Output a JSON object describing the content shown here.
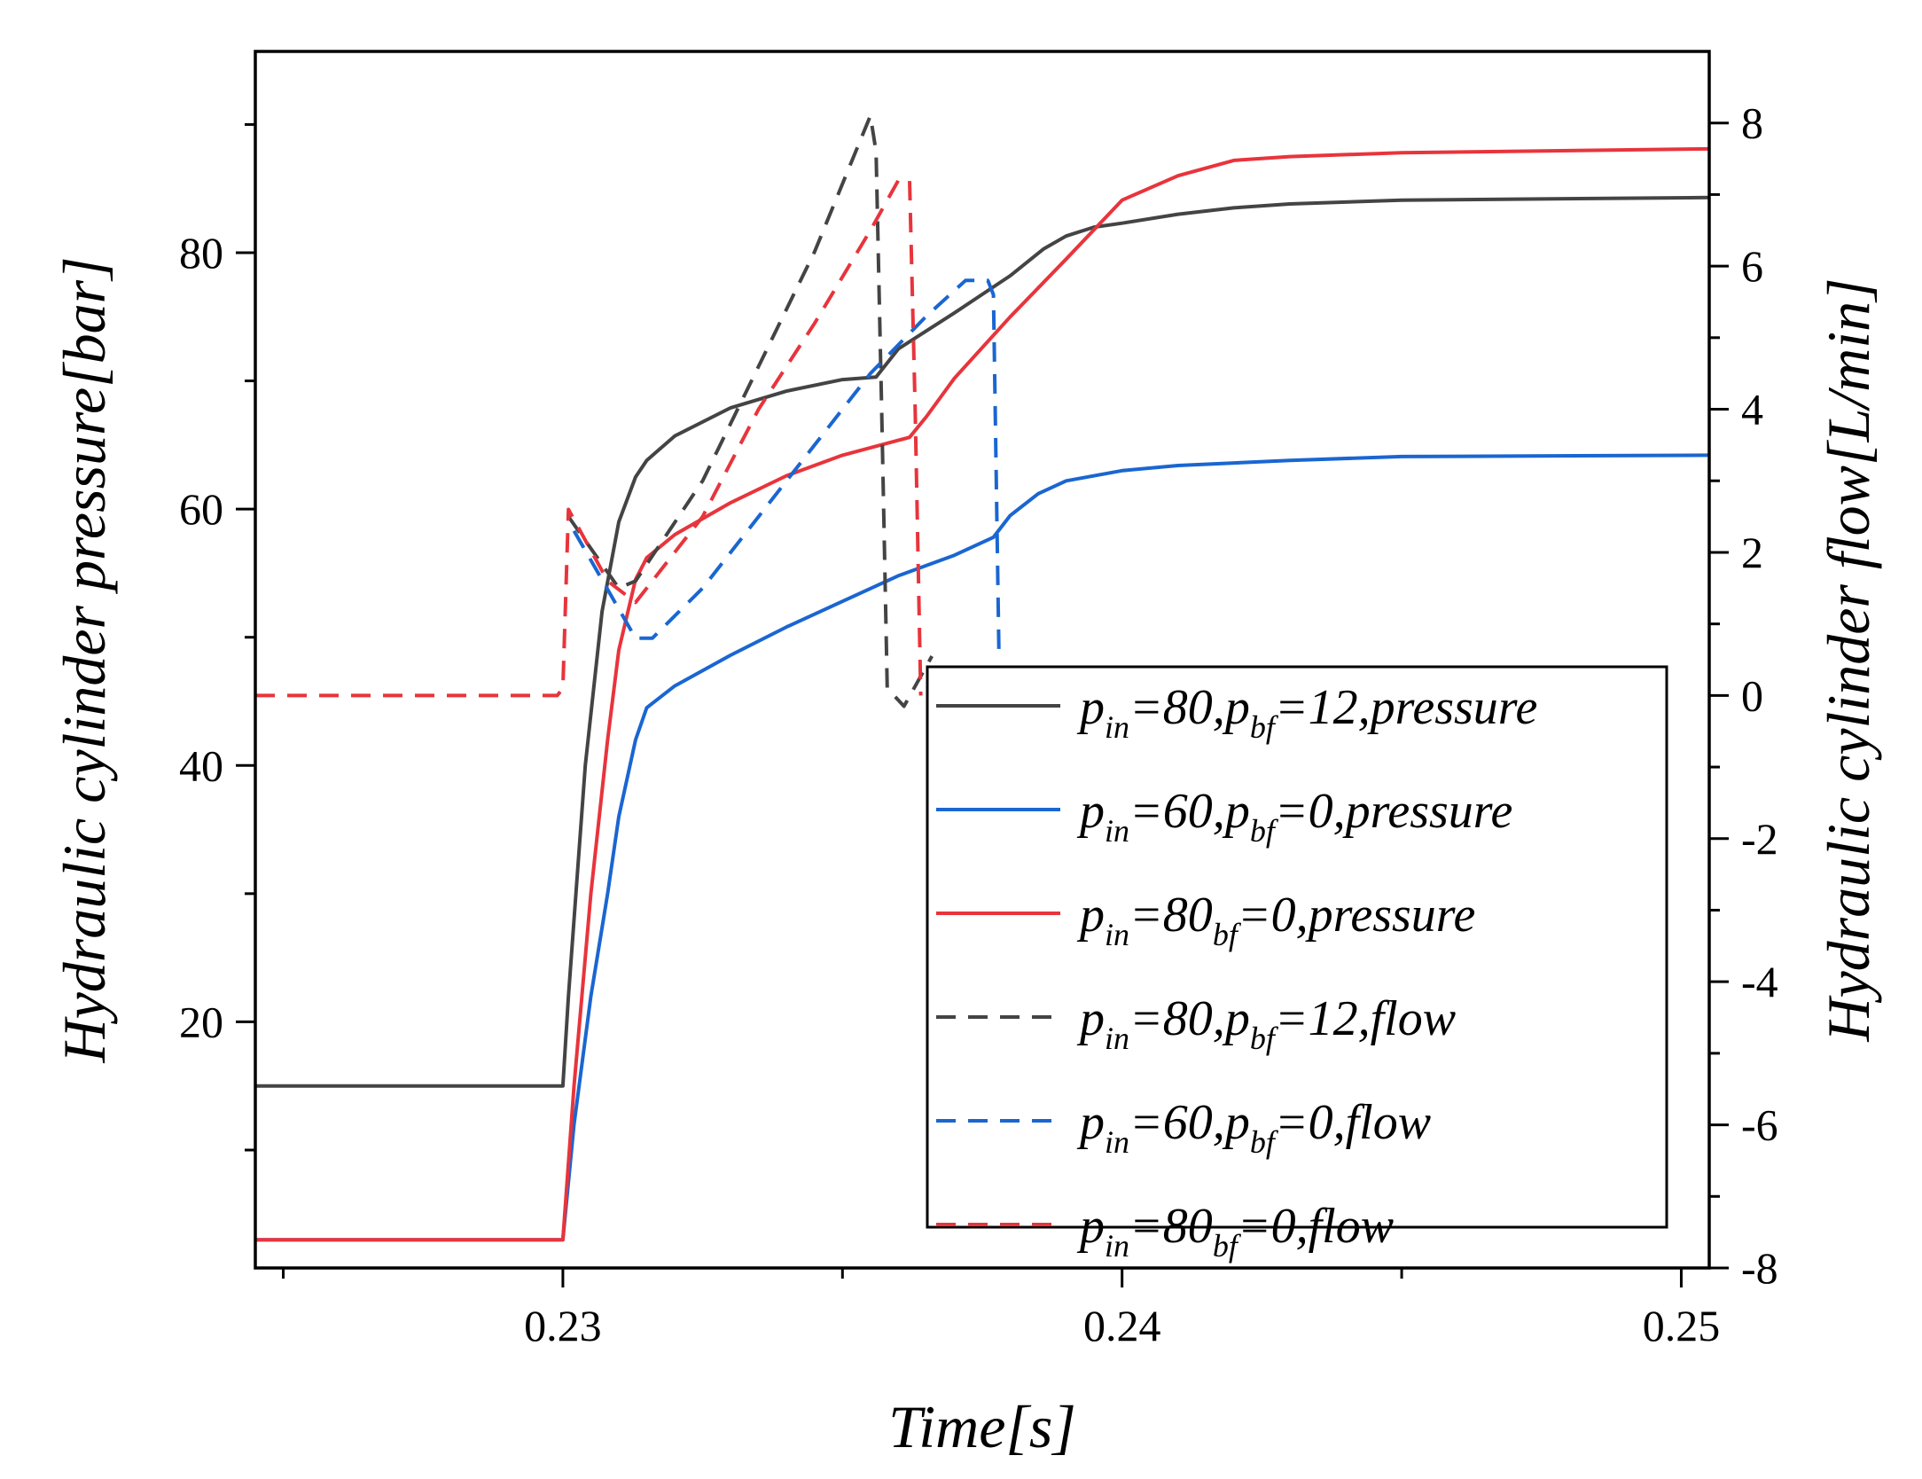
{
  "chart_data": {
    "type": "line",
    "xlabel": "Time[s]",
    "ylabel": "Hydraulic cylinder pressure[bar]",
    "y2label": "Hydraulic cylinder flow[L/min]",
    "xlim": [
      0.2245,
      0.2505
    ],
    "ylim": [
      0.8,
      95.7
    ],
    "y2lim": [
      -8,
      9
    ],
    "xticks": [
      0.23,
      0.24,
      0.25
    ],
    "xtick_labels": [
      "0.23",
      "0.24",
      "0.25"
    ],
    "yticks": [
      20,
      40,
      60,
      80
    ],
    "ytick_labels": [
      "20",
      "40",
      "60",
      "80"
    ],
    "y2ticks": [
      -8,
      -6,
      -4,
      -2,
      0,
      2,
      4,
      6,
      8
    ],
    "y2tick_labels": [
      "-8",
      "-6",
      "-4",
      "-2",
      "0",
      "2",
      "4",
      "6",
      "8"
    ],
    "grid": false,
    "legend_position": "lower-right",
    "series": [
      {
        "name": "p_in=80,p_bf=12,pressure",
        "legend": {
          "p1": "p",
          "s1": "in",
          "t1": "=80,",
          "p2": "p",
          "s2": "bf",
          "t2": "=12,pressure"
        },
        "color": "#444444",
        "dash": false,
        "axis": "left",
        "x": [
          0.2245,
          0.23,
          0.2301,
          0.2304,
          0.2307,
          0.231,
          0.2313,
          0.2315,
          0.232,
          0.233,
          0.234,
          0.235,
          0.2356,
          0.236,
          0.237,
          0.238,
          0.2386,
          0.239,
          0.2395,
          0.24,
          0.241,
          0.242,
          0.243,
          0.245,
          0.2505
        ],
        "y": [
          15,
          15,
          22,
          40,
          52,
          59,
          62.5,
          63.8,
          65.7,
          67.9,
          69.2,
          70.1,
          70.3,
          72.5,
          75.3,
          78.2,
          80.3,
          81.3,
          82,
          82.3,
          83,
          83.5,
          83.8,
          84.1,
          84.3
        ]
      },
      {
        "name": "p_in=60,p_bf=0,pressure",
        "legend": {
          "p1": "p",
          "s1": "in",
          "t1": "=60,",
          "p2": "p",
          "s2": "bf",
          "t2": "=0,pressure"
        },
        "color": "#1a66d1",
        "dash": false,
        "axis": "left",
        "x": [
          0.2245,
          0.23,
          0.2302,
          0.2305,
          0.2308,
          0.231,
          0.2313,
          0.2315,
          0.232,
          0.233,
          0.234,
          0.235,
          0.236,
          0.237,
          0.2377,
          0.238,
          0.2385,
          0.239,
          0.24,
          0.241,
          0.243,
          0.245,
          0.2505
        ],
        "y": [
          3,
          3,
          12,
          22,
          30,
          36,
          42,
          44.5,
          46.2,
          48.6,
          50.8,
          52.8,
          54.8,
          56.4,
          57.8,
          59.5,
          61.2,
          62.2,
          63,
          63.4,
          63.8,
          64.1,
          64.2
        ]
      },
      {
        "name": "p_in=80_bf=0,pressure",
        "legend": {
          "p1": "p",
          "s1": "in",
          "t1": "=80",
          "p2": "",
          "s2": "bf",
          "t2": "=0,pressure"
        },
        "color": "#e8343c",
        "dash": false,
        "axis": "left",
        "x": [
          0.2245,
          0.23,
          0.2302,
          0.2305,
          0.2308,
          0.231,
          0.2313,
          0.2315,
          0.232,
          0.233,
          0.234,
          0.235,
          0.2362,
          0.2365,
          0.237,
          0.238,
          0.239,
          0.24,
          0.241,
          0.242,
          0.243,
          0.245,
          0.2505
        ],
        "y": [
          3,
          3,
          15,
          30,
          42,
          49,
          54.5,
          56.2,
          58,
          60.5,
          62.6,
          64.2,
          65.6,
          67.2,
          70.2,
          75,
          79.5,
          84.1,
          86,
          87.2,
          87.5,
          87.8,
          88.1
        ]
      },
      {
        "name": "p_in=80,p_bf=12,flow",
        "legend": {
          "p1": "p",
          "s1": "in",
          "t1": "=80,",
          "p2": "p",
          "s2": "bf",
          "t2": "=12,flow"
        },
        "color": "#444444",
        "dash": true,
        "axis": "right",
        "x": [
          0.2301,
          0.231,
          0.2313,
          0.2325,
          0.2335,
          0.2345,
          0.2355,
          0.2356,
          0.2357,
          0.2358,
          0.2361,
          0.2366
        ],
        "y": [
          2.5,
          1.5,
          1.6,
          3,
          4.6,
          6.2,
          8.1,
          7.6,
          4,
          0.1,
          -0.15,
          0.55
        ]
      },
      {
        "name": "p_in=60,p_bf=0,flow",
        "legend": {
          "p1": "p",
          "s1": "in",
          "t1": "=60,",
          "p2": "p",
          "s2": "bf",
          "t2": "=0,flow"
        },
        "color": "#1a66d1",
        "dash": true,
        "axis": "right",
        "x": [
          0.2302,
          0.2313,
          0.2316,
          0.2325,
          0.2335,
          0.2345,
          0.2355,
          0.2365,
          0.2372,
          0.2376,
          0.2377,
          0.2378
        ],
        "y": [
          2.3,
          0.8,
          0.8,
          1.5,
          2.5,
          3.5,
          4.5,
          5.3,
          5.8,
          5.8,
          5.6,
          0.5
        ]
      },
      {
        "name": "p_in=80_bf=0,flow",
        "legend": {
          "p1": "p",
          "s1": "in",
          "t1": "=80",
          "p2": "",
          "s2": "bf",
          "t2": "=0,flow"
        },
        "color": "#e8343c",
        "dash": true,
        "axis": "right",
        "x": [
          0.2245,
          0.2299,
          0.23,
          0.2301,
          0.2308,
          0.2313,
          0.2325,
          0.2335,
          0.2345,
          0.2355,
          0.236,
          0.2362,
          0.2363,
          0.2364
        ],
        "y": [
          0,
          0,
          0.1,
          2.6,
          1.6,
          1.3,
          2.5,
          4,
          5.2,
          6.5,
          7.2,
          7.2,
          4,
          0
        ]
      }
    ]
  }
}
